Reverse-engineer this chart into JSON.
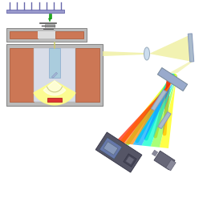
{
  "figsize": [
    2.58,
    2.47
  ],
  "dpi": 100,
  "bg_color": "#ffffff",
  "comb_color": "#9999cc",
  "comb_edge": "#6666aa",
  "gun_green": "#22aa22",
  "magnet_color": "#cc7755",
  "magnet_edge": "#aa5533",
  "chamber_gray": "#bbbbbb",
  "chamber_edge": "#888888",
  "inner_gray": "#cccccc",
  "pole_inner": "#dddddd",
  "mirror_blue": "#aabbdd",
  "mirror_edge": "#8899bb",
  "beam_yellow": "#eeee99",
  "beam_yellow2": "#ffff88",
  "parabola_fill": "#ffffcc",
  "parabola_glow": "#ffff88",
  "sample_red": "#dd3333",
  "lens_color": "#ccddee",
  "lens_edge": "#99aabb",
  "right_mirror_color": "#aabbcc",
  "grating_fill": "#99aacc",
  "grating_edge": "#778899",
  "det1_body": "#555566",
  "det1_face": "#778899",
  "det1_screen": "#6677aa",
  "det2_body": "#666677",
  "det2_cap": "#888899",
  "spectrum_colors": [
    "#ffff00",
    "#88ff44",
    "#00ffaa",
    "#00aaff",
    "#ff7700",
    "#ff2200"
  ],
  "beam_in_chamber": "#cccc66"
}
